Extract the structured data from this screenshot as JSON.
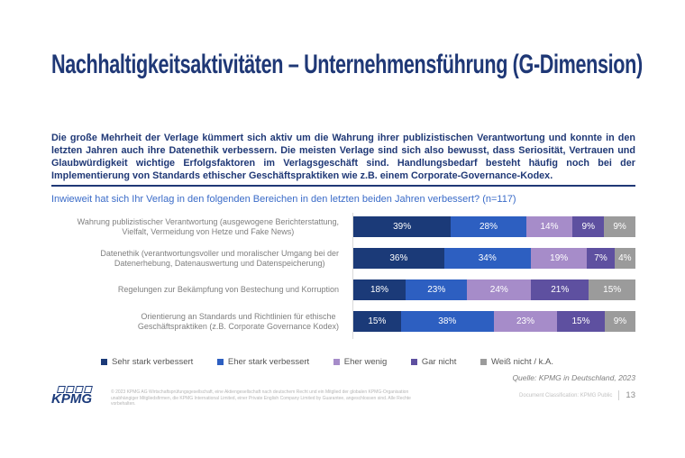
{
  "slide": {
    "title": "Nachhaltigkeitsaktivitäten – Unternehmensführung (G-Dimension)",
    "intro": "Die große Mehrheit der Verlage kümmert sich aktiv um die Wahrung ihrer publizistischen Verantwortung und konnte in den letzten Jahren auch ihre Datenethik verbessern. Die meisten Verlage sind sich also bewusst, dass Seriosität, Vertrauen und Glaubwürdigkeit wichtige Erfolgsfaktoren im Verlagsgeschäft sind. Handlungsbedarf besteht häufig noch bei der Implementierung von Standards ethischer Geschäftspraktiken wie z.B. einem Corporate-Governance-Kodex.",
    "question": "Inwieweit hat sich Ihr Verlag in den folgenden Bereichen in den letzten beiden Jahren verbessert? (n=117)",
    "source": "Quelle: KPMG in Deutschland, 2023"
  },
  "chart_data": {
    "type": "bar",
    "orientation": "horizontal",
    "stacked": true,
    "unit": "%",
    "xlim": [
      0,
      100
    ],
    "grid": false,
    "legend_position": "bottom",
    "value_labels": "inside-white",
    "categories": [
      "Wahrung publizistischer Verantwortung (ausgewogene Berichterstattung,\nVielfalt, Vermeidung von Hetze und Fake News)",
      "Datenethik (verantwortungsvoller und moralischer Umgang bei der\nDatenerhebung, Datenauswertung und Datenspeicherung)",
      "Regelungen zur Bekämpfung von Bestechung und Korruption",
      "Orientierung an Standards und Richtlinien für ethische\nGeschäftspraktiken (z.B. Corporate Governance Kodex)"
    ],
    "series": [
      {
        "name": "Sehr stark verbessert",
        "color": "#1b3a78",
        "values": [
          39,
          36,
          18,
          15
        ]
      },
      {
        "name": "Eher stark verbessert",
        "color": "#2d5fc1",
        "values": [
          28,
          34,
          23,
          38
        ]
      },
      {
        "name": "Eher wenig",
        "color": "#a68cc9",
        "values": [
          14,
          19,
          24,
          23
        ]
      },
      {
        "name": "Gar nicht",
        "color": "#5e50a0",
        "values": [
          9,
          7,
          21,
          15
        ]
      },
      {
        "name": "Weiß nicht / k.A.",
        "color": "#9b9b9b",
        "values": [
          9,
          4,
          15,
          9
        ]
      }
    ]
  },
  "footer": {
    "logo": "KPMG",
    "copyright_line1": "© 2023 KPMG AG Wirtschaftsprüfungsgesellschaft, eine Aktiengesellschaft nach deutschem Recht und ein Mitglied der globalen KPMG-Organisation",
    "copyright_line2": "unabhängiger Mitgliedsfirmen, die KPMG International Limited, einer Private English Company Limited by Guarantee, angeschlossen sind. Alle Rechte vorbehalten.",
    "classification": "Document Classification: KPMG Public",
    "page_number": "13"
  },
  "colors": {
    "title_navy": "#1f3876",
    "question_blue": "#3a6bc8",
    "label_gray": "#7f7f7f",
    "axis_line": "#d9d9d9"
  }
}
